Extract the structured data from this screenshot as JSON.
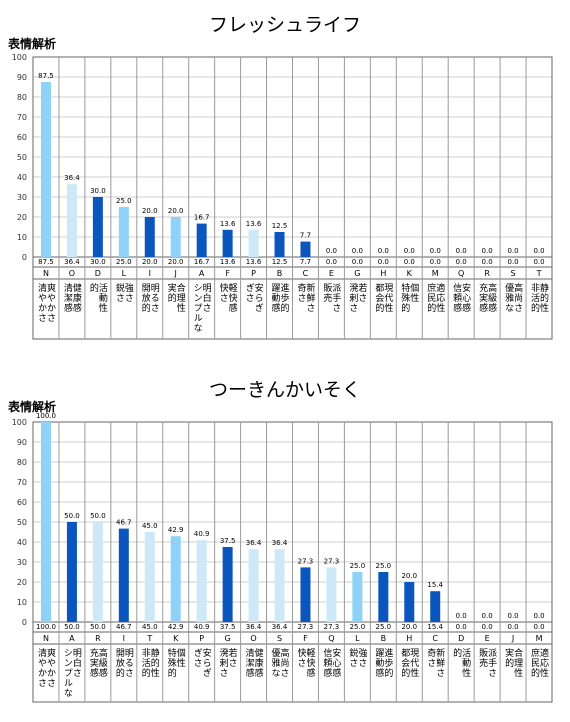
{
  "chart_data": [
    {
      "type": "bar",
      "title": "フレッシュライフ",
      "subtitle": "表情解析",
      "ylim": [
        0,
        100
      ],
      "yticks": [
        0,
        10,
        20,
        30,
        40,
        50,
        60,
        70,
        80,
        90,
        100
      ],
      "grid": true,
      "codes": [
        "N",
        "O",
        "D",
        "L",
        "I",
        "J",
        "A",
        "F",
        "P",
        "B",
        "C",
        "E",
        "G",
        "H",
        "K",
        "M",
        "Q",
        "R",
        "S",
        "T"
      ],
      "values": [
        87.5,
        36.4,
        30.0,
        25.0,
        20.0,
        20.0,
        16.7,
        13.6,
        13.6,
        12.5,
        7.7,
        0.0,
        0.0,
        0.0,
        0.0,
        0.0,
        0.0,
        0.0,
        0.0,
        0.0
      ],
      "value_labels": [
        "87.5",
        "36.4",
        "30.0",
        "25.0",
        "20.0",
        "20.0",
        "16.7",
        "13.6",
        "13.6",
        "12.5",
        "7.7",
        "0.0",
        "0.0",
        "0.0",
        "0.0",
        "0.0",
        "0.0",
        "0.0",
        "0.0",
        "0.0"
      ],
      "categories": [
        [
          "爽やかさ",
          "清やかさ"
        ],
        [
          "健康感",
          "清潔感"
        ],
        [
          "活動性",
          "的"
        ],
        [
          "強さ",
          "鋭さ"
        ],
        [
          "明るさ",
          "開放的"
        ],
        [
          "合理性",
          "実的"
        ],
        [
          "明白さ",
          "シンプルな"
        ],
        [
          "軽快感",
          "快さ"
        ],
        [
          "安らぎ",
          "ぎさ"
        ],
        [
          "進歩的",
          "躍動感"
        ],
        [
          "新鮮さ",
          "奇さ"
        ],
        [
          "派手さ",
          "販売"
        ],
        [
          "若さ",
          "溌剌さ"
        ],
        [
          "現代性",
          "都会的"
        ],
        [
          "個性",
          "特殊的"
        ],
        [
          "適応性",
          "庶民的"
        ],
        [
          "安心感",
          "信頼感"
        ],
        [
          "高級感",
          "充実感"
        ],
        [
          "高尚さ",
          "優雅な"
        ],
        [
          "静的性",
          "非活的"
        ]
      ],
      "colors": [
        "#8ed3f7",
        "#cde9f7",
        "#0a56be",
        "#8ed3f7",
        "#0a56be",
        "#8ed3f7",
        "#0a56be",
        "#0a56be",
        "#cde9f7",
        "#0a56be",
        "#0a56be",
        "#8ed3f7",
        "#8ed3f7",
        "#8ed3f7",
        "#8ed3f7",
        "#8ed3f7",
        "#8ed3f7",
        "#8ed3f7",
        "#8ed3f7",
        "#8ed3f7"
      ]
    },
    {
      "type": "bar",
      "title": "つーきんかいそく",
      "subtitle": "表情解析",
      "ylim": [
        0,
        100
      ],
      "yticks": [
        0,
        10,
        20,
        30,
        40,
        50,
        60,
        70,
        80,
        90,
        100
      ],
      "grid": true,
      "codes": [
        "N",
        "A",
        "R",
        "I",
        "T",
        "K",
        "P",
        "G",
        "O",
        "S",
        "F",
        "Q",
        "L",
        "B",
        "H",
        "C",
        "D",
        "E",
        "J",
        "M"
      ],
      "values": [
        100.0,
        50.0,
        50.0,
        46.7,
        45.0,
        42.9,
        40.9,
        37.5,
        36.4,
        36.4,
        27.3,
        27.3,
        25.0,
        25.0,
        20.0,
        15.4,
        0.0,
        0.0,
        0.0,
        0.0
      ],
      "value_labels": [
        "100.0",
        "50.0",
        "50.0",
        "46.7",
        "45.0",
        "42.9",
        "40.9",
        "37.5",
        "36.4",
        "36.4",
        "27.3",
        "27.3",
        "25.0",
        "25.0",
        "20.0",
        "15.4",
        "0.0",
        "0.0",
        "0.0",
        "0.0"
      ],
      "categories": [
        [
          "爽やかさ",
          "清やかさ"
        ],
        [
          "明白さ",
          "シンプルな"
        ],
        [
          "高級感",
          "充実感"
        ],
        [
          "明るさ",
          "開放的"
        ],
        [
          "静的性",
          "非活的"
        ],
        [
          "個性",
          "特殊的"
        ],
        [
          "安らぎ",
          "ぎさ"
        ],
        [
          "若さ",
          "溌剌さ"
        ],
        [
          "健康感",
          "清潔感"
        ],
        [
          "高尚さ",
          "優雅な"
        ],
        [
          "軽快感",
          "快さ"
        ],
        [
          "安心感",
          "信頼感"
        ],
        [
          "強さ",
          "鋭さ"
        ],
        [
          "進歩的",
          "躍動感"
        ],
        [
          "現代性",
          "都会的"
        ],
        [
          "新鮮さ",
          "奇さ"
        ],
        [
          "活動性",
          "的"
        ],
        [
          "派手さ",
          "販売"
        ],
        [
          "合理性",
          "実的"
        ],
        [
          "適応性",
          "庶民的"
        ]
      ],
      "colors": [
        "#8ed3f7",
        "#0a56be",
        "#cde9f7",
        "#0a56be",
        "#cde9f7",
        "#8ed3f7",
        "#cde9f7",
        "#0a56be",
        "#cde9f7",
        "#cde9f7",
        "#0a56be",
        "#cde9f7",
        "#8ed3f7",
        "#0a56be",
        "#0a56be",
        "#0a56be",
        "#8ed3f7",
        "#8ed3f7",
        "#8ed3f7",
        "#8ed3f7"
      ]
    }
  ]
}
